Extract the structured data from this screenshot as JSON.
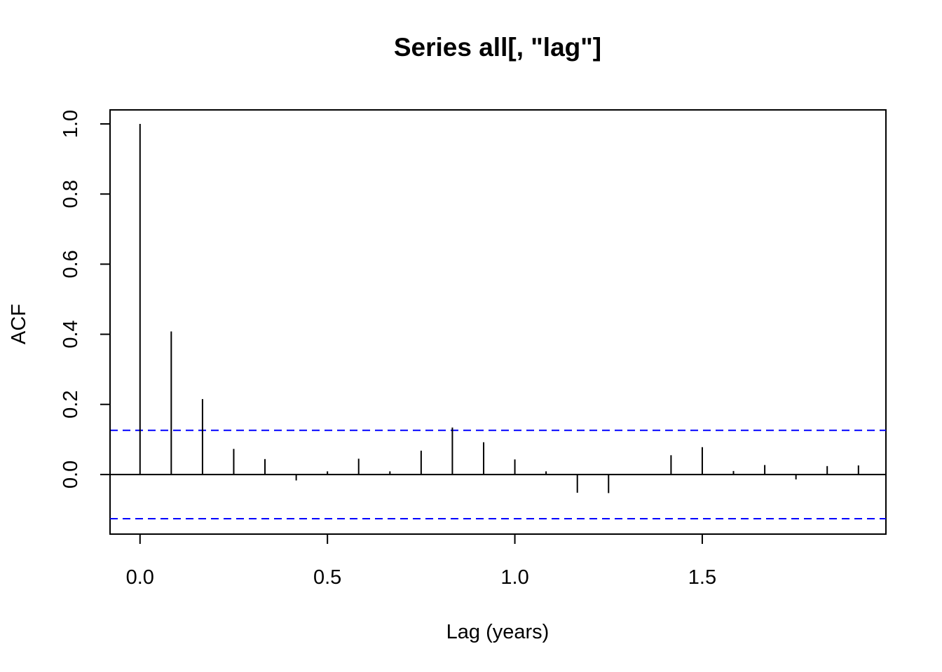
{
  "chart_data": {
    "type": "bar",
    "title": "Series  all[, \"lag\"]",
    "xlabel": "Lag (years)",
    "ylabel": "ACF",
    "xlim": [
      -0.08,
      1.99
    ],
    "ylim": [
      -0.17,
      1.04
    ],
    "xticks": [
      0.0,
      0.5,
      1.0,
      1.5
    ],
    "xtick_labels": [
      "0.0",
      "0.5",
      "1.0",
      "1.5"
    ],
    "yticks": [
      0.0,
      0.2,
      0.4,
      0.6,
      0.8,
      1.0
    ],
    "ytick_labels": [
      "0.0",
      "0.2",
      "0.4",
      "0.6",
      "0.8",
      "1.0"
    ],
    "lags": [
      0.0,
      0.0833,
      0.1667,
      0.25,
      0.3333,
      0.4167,
      0.5,
      0.5833,
      0.6667,
      0.75,
      0.8333,
      0.9167,
      1.0,
      1.0833,
      1.1667,
      1.25,
      1.3333,
      1.4167,
      1.5,
      1.5833,
      1.6667,
      1.75,
      1.8333,
      1.9167
    ],
    "acf": [
      1.0,
      0.408,
      0.215,
      0.073,
      0.044,
      -0.017,
      0.009,
      0.045,
      0.009,
      0.068,
      0.134,
      0.092,
      0.043,
      0.009,
      -0.052,
      -0.053,
      0.001,
      0.055,
      0.078,
      0.01,
      0.027,
      -0.014,
      0.024,
      0.026
    ],
    "confidence_bound": 0.126,
    "bound_color": "#0000ff",
    "grid": false
  }
}
